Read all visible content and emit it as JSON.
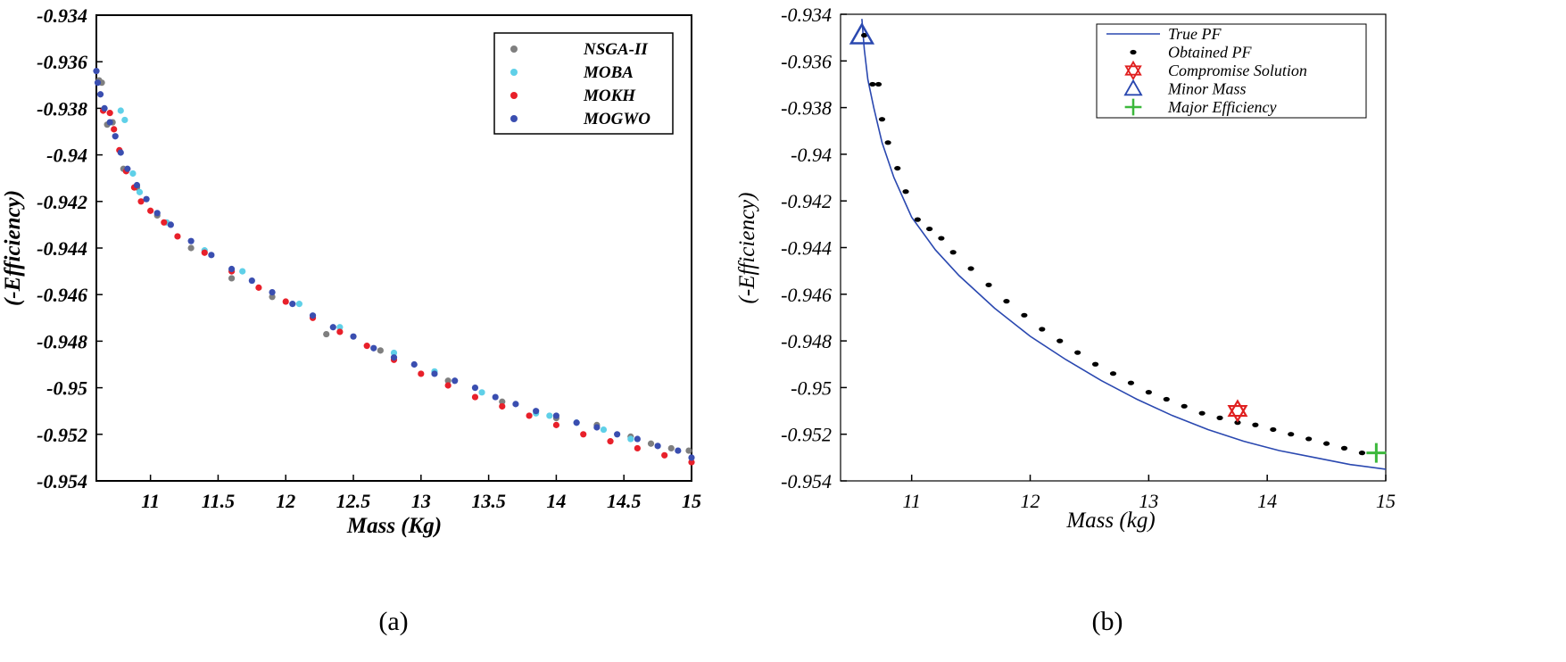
{
  "chart_data": [
    {
      "panel_label": "(a)",
      "type": "scatter",
      "xlabel": "Mass (Kg)",
      "ylabel": "(-Efficiency)",
      "xlim": [
        10.6,
        15
      ],
      "ylim": [
        -0.954,
        -0.934
      ],
      "xticks": [
        11,
        11.5,
        12,
        12.5,
        13,
        13.5,
        14,
        14.5,
        15
      ],
      "xtick_labels": [
        "11",
        "11.5",
        "12",
        "12.5",
        "13",
        "13.5",
        "14",
        "14.5",
        "15"
      ],
      "yticks": [
        -0.934,
        -0.936,
        -0.938,
        -0.94,
        -0.942,
        -0.944,
        -0.946,
        -0.948,
        -0.95,
        -0.952,
        -0.954
      ],
      "ytick_labels": [
        "-0.934",
        "-0.936",
        "-0.938",
        "-0.94",
        "-0.942",
        "-0.944",
        "-0.946",
        "-0.948",
        "-0.95",
        "-0.952",
        "-0.954"
      ],
      "grid": false,
      "legend_position": "top-right",
      "series": [
        {
          "name": "NSGA-II",
          "color": "#7f7f7f",
          "x": [
            10.62,
            10.64,
            10.68,
            10.72,
            10.8,
            10.9,
            11.05,
            11.3,
            11.6,
            11.9,
            12.3,
            12.7,
            13.2,
            13.6,
            14.0,
            14.3,
            14.55,
            14.7,
            14.85,
            14.98
          ],
          "y": [
            -0.9368,
            -0.9369,
            -0.9387,
            -0.9386,
            -0.9406,
            -0.9414,
            -0.9426,
            -0.944,
            -0.9453,
            -0.9461,
            -0.9477,
            -0.9484,
            -0.9497,
            -0.9506,
            -0.9513,
            -0.9516,
            -0.9521,
            -0.9524,
            -0.9526,
            -0.9527
          ]
        },
        {
          "name": "MOBA",
          "color": "#5fd0e8",
          "x": [
            10.78,
            10.81,
            10.87,
            10.92,
            11.12,
            11.4,
            11.68,
            12.1,
            12.4,
            12.8,
            13.1,
            13.45,
            13.85,
            13.95,
            14.15,
            14.35,
            14.55
          ],
          "y": [
            -0.9381,
            -0.9385,
            -0.9408,
            -0.9416,
            -0.9429,
            -0.9441,
            -0.945,
            -0.9464,
            -0.9474,
            -0.9485,
            -0.9493,
            -0.9502,
            -0.9511,
            -0.9512,
            -0.9515,
            -0.9518,
            -0.9522
          ]
        },
        {
          "name": "MOKH",
          "color": "#e8202a",
          "x": [
            10.65,
            10.7,
            10.73,
            10.77,
            10.82,
            10.88,
            10.93,
            11.0,
            11.1,
            11.2,
            11.4,
            11.6,
            11.8,
            12.0,
            12.2,
            12.4,
            12.6,
            12.8,
            13.0,
            13.2,
            13.4,
            13.6,
            13.8,
            14.0,
            14.2,
            14.4,
            14.6,
            14.8,
            15.0
          ],
          "y": [
            -0.9381,
            -0.9382,
            -0.9389,
            -0.9398,
            -0.9407,
            -0.9414,
            -0.942,
            -0.9424,
            -0.9429,
            -0.9435,
            -0.9442,
            -0.945,
            -0.9457,
            -0.9463,
            -0.947,
            -0.9476,
            -0.9482,
            -0.9488,
            -0.9494,
            -0.9499,
            -0.9504,
            -0.9508,
            -0.9512,
            -0.9516,
            -0.952,
            -0.9523,
            -0.9526,
            -0.9529,
            -0.9532
          ]
        },
        {
          "name": "MOGWO",
          "color": "#3a4eb0",
          "x": [
            10.6,
            10.61,
            10.63,
            10.66,
            10.7,
            10.74,
            10.78,
            10.83,
            10.9,
            10.97,
            11.05,
            11.15,
            11.3,
            11.45,
            11.6,
            11.75,
            11.9,
            12.05,
            12.2,
            12.35,
            12.5,
            12.65,
            12.8,
            12.95,
            13.1,
            13.25,
            13.4,
            13.55,
            13.7,
            13.85,
            14.0,
            14.15,
            14.3,
            14.45,
            14.6,
            14.75,
            14.9,
            15.0
          ],
          "y": [
            -0.9364,
            -0.9369,
            -0.9374,
            -0.938,
            -0.9386,
            -0.9392,
            -0.9399,
            -0.9406,
            -0.9413,
            -0.9419,
            -0.9425,
            -0.943,
            -0.9437,
            -0.9443,
            -0.9449,
            -0.9454,
            -0.9459,
            -0.9464,
            -0.9469,
            -0.9474,
            -0.9478,
            -0.9483,
            -0.9487,
            -0.949,
            -0.9494,
            -0.9497,
            -0.95,
            -0.9504,
            -0.9507,
            -0.951,
            -0.9512,
            -0.9515,
            -0.9517,
            -0.952,
            -0.9522,
            -0.9525,
            -0.9527,
            -0.953
          ]
        }
      ]
    },
    {
      "panel_label": "(b)",
      "type": "line",
      "xlabel": "Mass (kg)",
      "ylabel": "(-Efficiency)",
      "xlim": [
        10.4,
        15
      ],
      "ylim": [
        -0.954,
        -0.934
      ],
      "xticks": [
        11,
        12,
        13,
        14,
        15
      ],
      "xtick_labels": [
        "11",
        "12",
        "13",
        "14",
        "15"
      ],
      "yticks": [
        -0.934,
        -0.936,
        -0.938,
        -0.94,
        -0.942,
        -0.944,
        -0.946,
        -0.948,
        -0.95,
        -0.952,
        -0.954
      ],
      "ytick_labels": [
        "-0.934",
        "-0.936",
        "-0.938",
        "-0.94",
        "-0.942",
        "-0.944",
        "-0.946",
        "-0.948",
        "-0.95",
        "-0.952",
        "-0.954"
      ],
      "grid": false,
      "legend_position": "top-right",
      "series": [
        {
          "name": "True PF",
          "style": "line",
          "color": "#2a48b0",
          "x": [
            10.58,
            10.6,
            10.63,
            10.68,
            10.75,
            10.85,
            11.0,
            11.2,
            11.4,
            11.7,
            12.0,
            12.3,
            12.6,
            12.9,
            13.2,
            13.5,
            13.8,
            14.1,
            14.4,
            14.7,
            15.0
          ],
          "y": [
            -0.9342,
            -0.9355,
            -0.9368,
            -0.938,
            -0.9395,
            -0.941,
            -0.9427,
            -0.9441,
            -0.9452,
            -0.9466,
            -0.9478,
            -0.9488,
            -0.9497,
            -0.9505,
            -0.9512,
            -0.9518,
            -0.9523,
            -0.9527,
            -0.953,
            -0.9533,
            -0.9535
          ]
        },
        {
          "name": "Obtained PF",
          "style": "points",
          "color": "#000000",
          "x": [
            10.6,
            10.67,
            10.72,
            10.75,
            10.8,
            10.88,
            10.95,
            11.05,
            11.15,
            11.25,
            11.35,
            11.5,
            11.65,
            11.8,
            11.95,
            12.1,
            12.25,
            12.4,
            12.55,
            12.7,
            12.85,
            13.0,
            13.15,
            13.3,
            13.45,
            13.6,
            13.75,
            13.9,
            14.05,
            14.2,
            14.35,
            14.5,
            14.65,
            14.8
          ],
          "y": [
            -0.9349,
            -0.937,
            -0.937,
            -0.9385,
            -0.9395,
            -0.9406,
            -0.9416,
            -0.9428,
            -0.9432,
            -0.9436,
            -0.9442,
            -0.9449,
            -0.9456,
            -0.9463,
            -0.9469,
            -0.9475,
            -0.948,
            -0.9485,
            -0.949,
            -0.9494,
            -0.9498,
            -0.9502,
            -0.9505,
            -0.9508,
            -0.9511,
            -0.9513,
            -0.9515,
            -0.9516,
            -0.9518,
            -0.952,
            -0.9522,
            -0.9524,
            -0.9526,
            -0.9528
          ]
        },
        {
          "name": "Compromise Solution",
          "style": "marker-hexagram",
          "color": "#e02020",
          "x": [
            13.75
          ],
          "y": [
            -0.951
          ]
        },
        {
          "name": "Minor Mass",
          "style": "marker-triangle",
          "color": "#2a48b0",
          "x": [
            10.58
          ],
          "y": [
            -0.9349
          ]
        },
        {
          "name": "Major Efficiency",
          "style": "marker-plus",
          "color": "#3cb83c",
          "x": [
            14.92
          ],
          "y": [
            -0.9528
          ]
        }
      ]
    }
  ]
}
